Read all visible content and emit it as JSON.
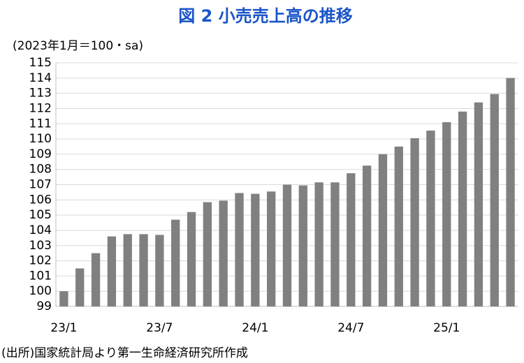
{
  "chart_data": {
    "type": "bar",
    "title": "図 2  小売売上高の推移",
    "subtitle": "(2023年1月＝100・sa)",
    "source": "(出所)国家統計局より第一生命経済研究所作成",
    "categories": [
      "23/1",
      null,
      null,
      null,
      null,
      null,
      "23/7",
      null,
      null,
      null,
      null,
      null,
      "24/1",
      null,
      null,
      null,
      null,
      null,
      "24/7",
      null,
      null,
      null,
      null,
      null,
      "25/1",
      null,
      null,
      null,
      null
    ],
    "values": [
      100.0,
      101.5,
      102.5,
      103.6,
      103.75,
      103.75,
      103.7,
      104.7,
      105.2,
      105.85,
      105.95,
      106.45,
      106.4,
      106.55,
      107.0,
      106.95,
      107.15,
      107.15,
      107.75,
      108.25,
      109.0,
      109.5,
      110.05,
      110.55,
      111.1,
      111.8,
      112.4,
      112.95,
      114.0
    ],
    "color": "#808080",
    "title_color": "#1a55c8",
    "ylim": [
      99,
      115
    ],
    "yticks": [
      99,
      100,
      101,
      102,
      103,
      104,
      105,
      106,
      107,
      108,
      109,
      110,
      111,
      112,
      113,
      114,
      115
    ],
    "grid": true
  }
}
